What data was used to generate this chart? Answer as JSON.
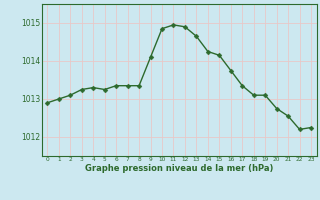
{
  "x": [
    0,
    1,
    2,
    3,
    4,
    5,
    6,
    7,
    8,
    9,
    10,
    11,
    12,
    13,
    14,
    15,
    16,
    17,
    18,
    19,
    20,
    21,
    22,
    23
  ],
  "y": [
    1012.9,
    1013.0,
    1013.1,
    1013.25,
    1013.3,
    1013.25,
    1013.35,
    1013.35,
    1013.35,
    1014.1,
    1014.85,
    1014.95,
    1014.9,
    1014.65,
    1014.25,
    1014.15,
    1013.75,
    1013.35,
    1013.1,
    1013.1,
    1012.75,
    1012.55,
    1012.2,
    1012.25
  ],
  "line_color": "#2d6a2d",
  "marker_color": "#2d6a2d",
  "bg_color": "#cce8f0",
  "grid_color": "#e8c8c8",
  "axis_color": "#2d6a2d",
  "xlabel": "Graphe pression niveau de la mer (hPa)",
  "xlabel_color": "#2d6a2d",
  "ylim_min": 1011.5,
  "ylim_max": 1015.5,
  "yticks": [
    1012,
    1013,
    1014,
    1015
  ],
  "marker_size": 2.5,
  "line_width": 1.0
}
